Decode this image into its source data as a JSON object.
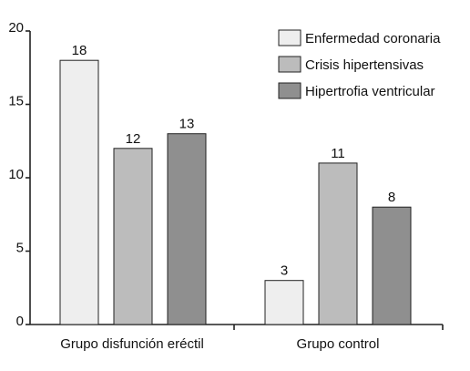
{
  "chart_data": {
    "type": "bar",
    "categories": [
      "Grupo disfunción eréctil",
      "Grupo control"
    ],
    "series": [
      {
        "name": "Enfermedad coronaria",
        "values": [
          18,
          3
        ],
        "color": "#eeeeee"
      },
      {
        "name": "Crisis hipertensivas",
        "values": [
          12,
          11
        ],
        "color": "#bcbcbc"
      },
      {
        "name": "Hipertrofia ventricular",
        "values": [
          13,
          8
        ],
        "color": "#8f8f8f"
      }
    ],
    "ylim": [
      0,
      20
    ],
    "yticks": [
      "0",
      "5",
      "10",
      "15",
      "20"
    ],
    "grid": false,
    "legend_position": "top-right",
    "data_labels": true
  }
}
